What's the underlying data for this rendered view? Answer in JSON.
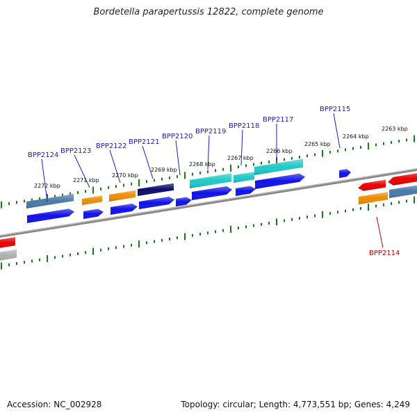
{
  "title": "Bordetella parapertussis 12822, complete genome",
  "footer": {
    "accession": "Accession: NC_002928",
    "summary": "Topology: circular; Length: 4,773,551 bp; Genes: 4,249"
  },
  "colors": {
    "backbone": "#888888",
    "tick": "#1a7a1a",
    "label_blue": "#1a1acc",
    "label_red": "#cc0000",
    "blue": "#1010e8",
    "navy": "#0a0a70",
    "cyan": "#20c8c8",
    "steelblue": "#4a78a8",
    "orange": "#f08c00",
    "red": "#e80000",
    "gray": "#b0b0b0"
  },
  "kbp_labels": [
    "2272 kbp",
    "2271 kbp",
    "2270 kbp",
    "2269 kbp",
    "2268 kbp",
    "2267 kbp",
    "2266 kbp",
    "2265 kbp",
    "2264 kbp",
    "2263 kbp"
  ],
  "gene_labels": [
    "BPP2124",
    "BPP2123",
    "BPP2122",
    "BPP2121",
    "BPP2120",
    "BPP2119",
    "BPP2118",
    "BPP2117",
    "BPP2115",
    "BPP2114"
  ]
}
